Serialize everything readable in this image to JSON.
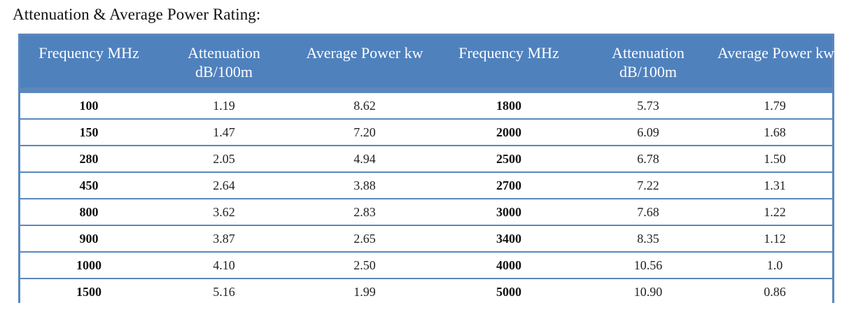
{
  "heading": "Attenuation & Average Power Rating:",
  "table": {
    "headers": [
      {
        "lines": [
          "Frequency MHz"
        ]
      },
      {
        "lines": [
          "Attenuation",
          "dB/100m"
        ]
      },
      {
        "lines": [
          "Average Power kw"
        ]
      },
      {
        "lines": [
          "Frequency MHz"
        ]
      },
      {
        "lines": [
          "Attenuation",
          "dB/100m"
        ]
      },
      {
        "lines": [
          "Average Power kw"
        ]
      }
    ],
    "rows": [
      [
        "100",
        "1.19",
        "8.62",
        "1800",
        "5.73",
        "1.79"
      ],
      [
        "150",
        "1.47",
        "7.20",
        "2000",
        "6.09",
        "1.68"
      ],
      [
        "280",
        "2.05",
        "4.94",
        "2500",
        "6.78",
        "1.50"
      ],
      [
        "450",
        "2.64",
        "3.88",
        "2700",
        "7.22",
        "1.31"
      ],
      [
        "800",
        "3.62",
        "2.83",
        "3000",
        "7.68",
        "1.22"
      ],
      [
        "900",
        "3.87",
        "2.65",
        "3400",
        "8.35",
        "1.12"
      ],
      [
        "1000",
        "4.10",
        "2.50",
        "4000",
        "10.56",
        "1.0"
      ],
      [
        "1500",
        "5.16",
        "1.99",
        "5000",
        "10.90",
        "0.86"
      ]
    ]
  },
  "colors": {
    "header_bg": "#4f81bd",
    "border": "#5b87bd",
    "header_text": "#ffffff"
  }
}
